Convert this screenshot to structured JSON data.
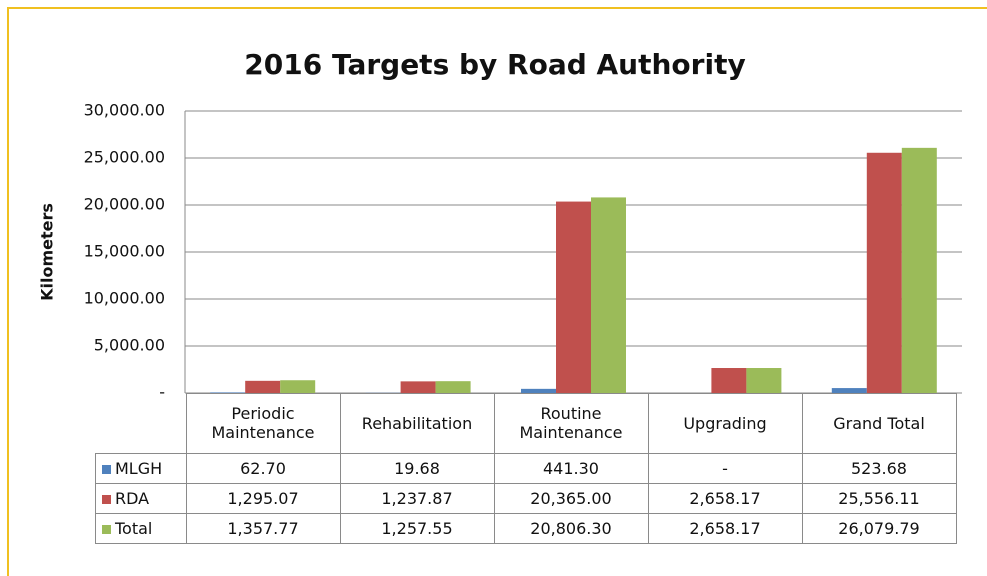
{
  "chart_data": {
    "type": "bar",
    "title": "2016 Targets by Road Authority",
    "y_label": "Kilometers",
    "categories": [
      "Periodic Maintenance",
      "Rehabilitation",
      "Routine Maintenance",
      "Upgrading",
      "Grand Total"
    ],
    "series": [
      {
        "name": "MLGH",
        "color": "#4f81bd",
        "values": [
          62.7,
          19.68,
          441.3,
          null,
          523.68
        ],
        "value_labels": [
          "62.70",
          "19.68",
          "441.30",
          "-",
          "523.68"
        ]
      },
      {
        "name": "RDA",
        "color": "#c0504d",
        "values": [
          1295.07,
          1237.87,
          20365,
          2658.17,
          25556.11
        ],
        "value_labels": [
          "1,295.07",
          "1,237.87",
          "20,365.00",
          "2,658.17",
          "25,556.11"
        ]
      },
      {
        "name": "Total",
        "color": "#9bbb59",
        "values": [
          1357.77,
          1257.55,
          20806.3,
          2658.17,
          26079.79
        ],
        "value_labels": [
          "1,357.77",
          "1,257.55",
          "20,806.30",
          "2,658.17",
          "26,079.79"
        ]
      }
    ],
    "ylim": [
      0,
      30000
    ],
    "yticks": [
      {
        "value": 0,
        "label": "-"
      },
      {
        "value": 5000,
        "label": "5,000.00"
      },
      {
        "value": 10000,
        "label": "10,000.00"
      },
      {
        "value": 15000,
        "label": "15,000.00"
      },
      {
        "value": 20000,
        "label": "20,000.00"
      },
      {
        "value": 25000,
        "label": "25,000.00"
      },
      {
        "value": 30000,
        "label": "30,000.00"
      }
    ],
    "grid": true
  }
}
